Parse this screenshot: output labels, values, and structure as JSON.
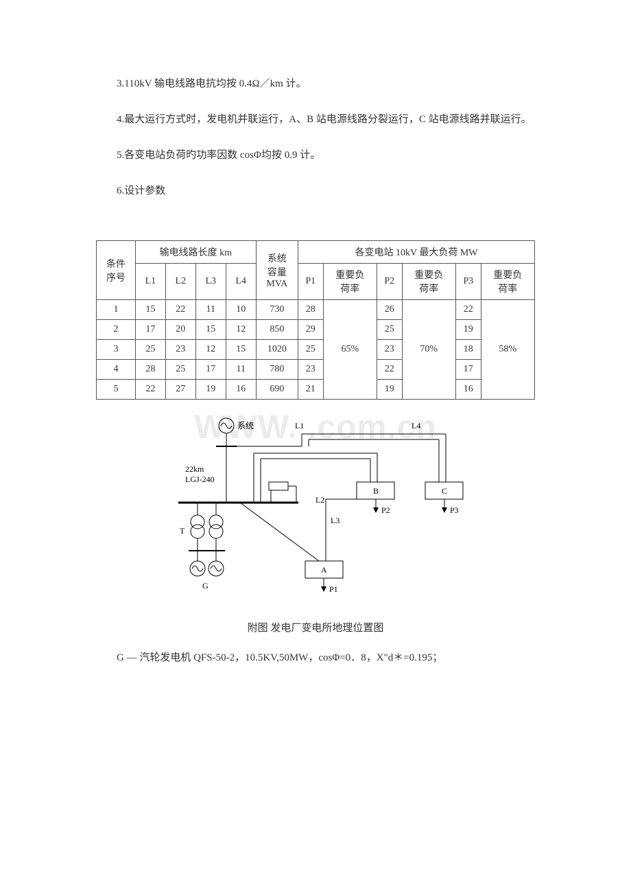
{
  "paras": {
    "p3": "3.110kV 输电线路电抗均按 0.4Ω／km 计。",
    "p4": "4.最大运行方式时，发电机并联运行，A、B 站电源线路分裂运行，C 站电源线路并联运行。",
    "p5": "5.各变电站负荷旳功率因数 cosΦ均按 0.9 计。",
    "p6": "6.设计参数"
  },
  "table": {
    "header_group_cond": "条件\n序号",
    "header_group_lines": "输电线路长度 km",
    "header_group_sys": "系统\n容量\nMVA",
    "header_group_load": "各变电站 10kV 最大负荷 MW",
    "cols": {
      "L1": "L1",
      "L2": "L2",
      "L3": "L3",
      "L4": "L4",
      "P1": "P1",
      "P2": "P2",
      "P3": "P3",
      "rate1": "重要负\n荷率",
      "rate2": "重要负\n荷率",
      "rate3": "重要负\n荷率"
    },
    "rate_vals": {
      "r1": "65%",
      "r2": "70%",
      "r3": "58%"
    },
    "rows": [
      {
        "n": "1",
        "L1": "15",
        "L2": "22",
        "L3": "11",
        "L4": "10",
        "S": "730",
        "P1": "28",
        "P2": "26",
        "P3": "22"
      },
      {
        "n": "2",
        "L1": "17",
        "L2": "20",
        "L3": "15",
        "L4": "12",
        "S": "850",
        "P1": "29",
        "P2": "25",
        "P3": "19"
      },
      {
        "n": "3",
        "L1": "25",
        "L2": "23",
        "L3": "12",
        "L4": "15",
        "S": "1020",
        "P1": "25",
        "P2": "23",
        "P3": "18"
      },
      {
        "n": "4",
        "L1": "28",
        "L2": "25",
        "L3": "17",
        "L4": "11",
        "S": "780",
        "P1": "23",
        "P2": "22",
        "P3": "17"
      },
      {
        "n": "5",
        "L1": "22",
        "L2": "27",
        "L3": "19",
        "L4": "16",
        "S": "690",
        "P1": "21",
        "P2": "19",
        "P3": "16"
      }
    ]
  },
  "watermark": "WWW.     .com.cn",
  "diagram": {
    "labels": {
      "system": "系统",
      "L1": "L1",
      "L2": "L2",
      "L3": "L3",
      "L4": "L4",
      "cable": "22km\nLGJ-240",
      "T": "T",
      "G": "G",
      "A": "A",
      "B": "B",
      "C": "C",
      "P1": "P1",
      "P2": "P2",
      "P3": "P3"
    },
    "style": {
      "stroke": "#000000",
      "stroke_width": 1,
      "fill_none": "none",
      "fill_white": "#ffffff"
    }
  },
  "caption": "附图    发电厂变电所地理位置图",
  "legend": "G — 汽轮发电机 QFS-50-2，10.5KV,50MW，cosΦ=0．8，X\"d＊=0.195；"
}
